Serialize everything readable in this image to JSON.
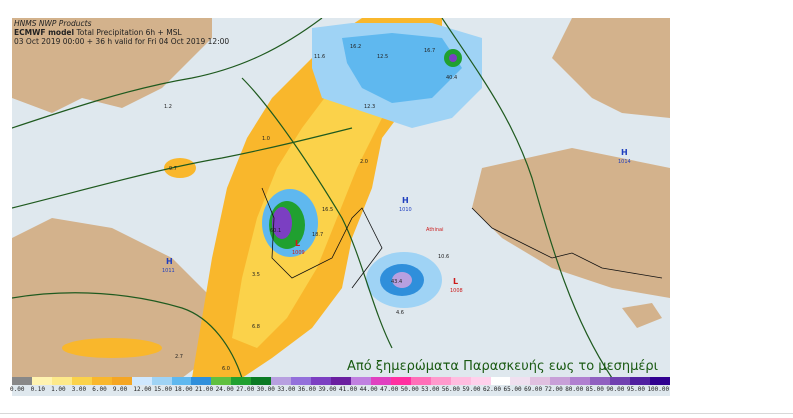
{
  "header": {
    "provider": "HNMS NWP Products",
    "model_name": "ECMWF model",
    "product": " Total Precipitation 6h + MSL",
    "validity": "03 Oct 2019 00:00 + 36 h valid for Fri 04 Oct 2019 12:00"
  },
  "caption": "Από ξημερώματα Παρασκευής εως το μεσημέρι",
  "pressure_centers": [
    {
      "type": "H",
      "value": "1011"
    },
    {
      "type": "H",
      "value": "1014"
    },
    {
      "type": "L",
      "value": "1009"
    },
    {
      "type": "L",
      "value": "1008"
    },
    {
      "type": "H",
      "value": "1010"
    }
  ],
  "precip_labels": [
    "16.2",
    "11.6",
    "12.5",
    "16.7",
    "12.3",
    "60.1",
    "40.4",
    "43.4",
    "18.7",
    "16.5",
    "10.6",
    "9.7",
    "4.6",
    "2.0",
    "1.2",
    "1.0",
    "6.8",
    "3.5",
    "2.7",
    "6.0"
  ],
  "city_label": "Athinai",
  "colors": {
    "sea": "#dfe8ee",
    "land": "#d3b28c",
    "caption": "#1a5a12",
    "isobar": "#1f5a1f",
    "pressure_high": "#1f3fbf",
    "pressure_low": "#cc1a1a"
  },
  "legend": {
    "colors": [
      "#888888",
      "#fff3b0",
      "#fde98a",
      "#fbd24a",
      "#f9b72c",
      "#f5a623",
      "#cfe8ff",
      "#9fd3f5",
      "#5fb8ef",
      "#2f8fdb",
      "#60c040",
      "#20a030",
      "#0b7a24",
      "#b7a0e0",
      "#9370db",
      "#7b3fc2",
      "#6a1fa0",
      "#c080e0",
      "#e040c0",
      "#ff2fa0",
      "#ff6fb8",
      "#ff99cc",
      "#ffbde0",
      "#ffd1ec",
      "#ffffff",
      "#f0e0f0",
      "#e0c0e0",
      "#c8a0d8",
      "#b080d0",
      "#9060c0",
      "#7040b0",
      "#5020a0",
      "#300090"
    ],
    "labels": [
      "0.00",
      "0.10",
      "1.00",
      "3.00",
      "6.00",
      "9.00",
      "12.00",
      "15.00",
      "18.00",
      "21.00",
      "24.00",
      "27.00",
      "30.00",
      "33.00",
      "36.00",
      "39.00",
      "41.00",
      "44.00",
      "47.00",
      "50.00",
      "53.00",
      "56.00",
      "59.00",
      "62.00",
      "65.00",
      "69.00",
      "72.00",
      "80.00",
      "85.00",
      "90.00",
      "95.00",
      "100.00"
    ]
  }
}
